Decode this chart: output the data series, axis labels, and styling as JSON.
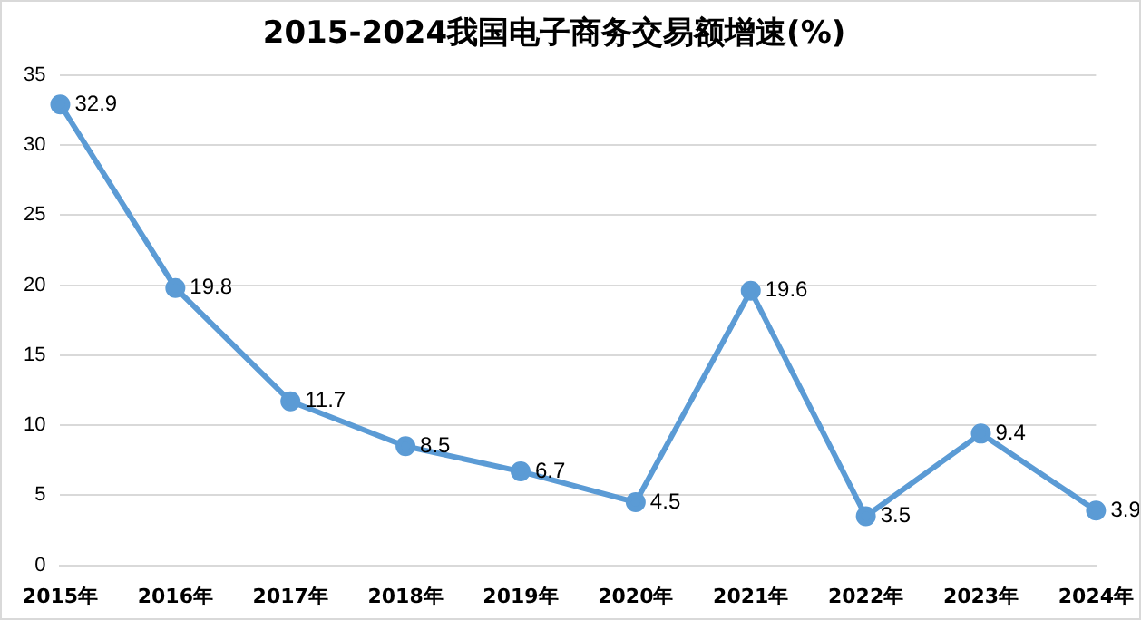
{
  "chart_data": {
    "type": "line",
    "title": "2015-2024我国电子商务交易额增速(%)",
    "categories": [
      "2015年",
      "2016年",
      "2017年",
      "2018年",
      "2019年",
      "2020年",
      "2021年",
      "2022年",
      "2023年",
      "2024年"
    ],
    "series": [
      {
        "color": "#5b9bd5",
        "values": [
          32.9,
          19.8,
          11.7,
          8.5,
          6.7,
          4.5,
          19.6,
          3.5,
          9.4,
          3.9
        ]
      }
    ],
    "ylim": [
      0,
      35
    ],
    "yticks": [
      0,
      5,
      10,
      15,
      20,
      25,
      30,
      35
    ],
    "grid": "y",
    "legend": false,
    "marker": "circle",
    "line_style": "solid",
    "data_labels": true
  }
}
